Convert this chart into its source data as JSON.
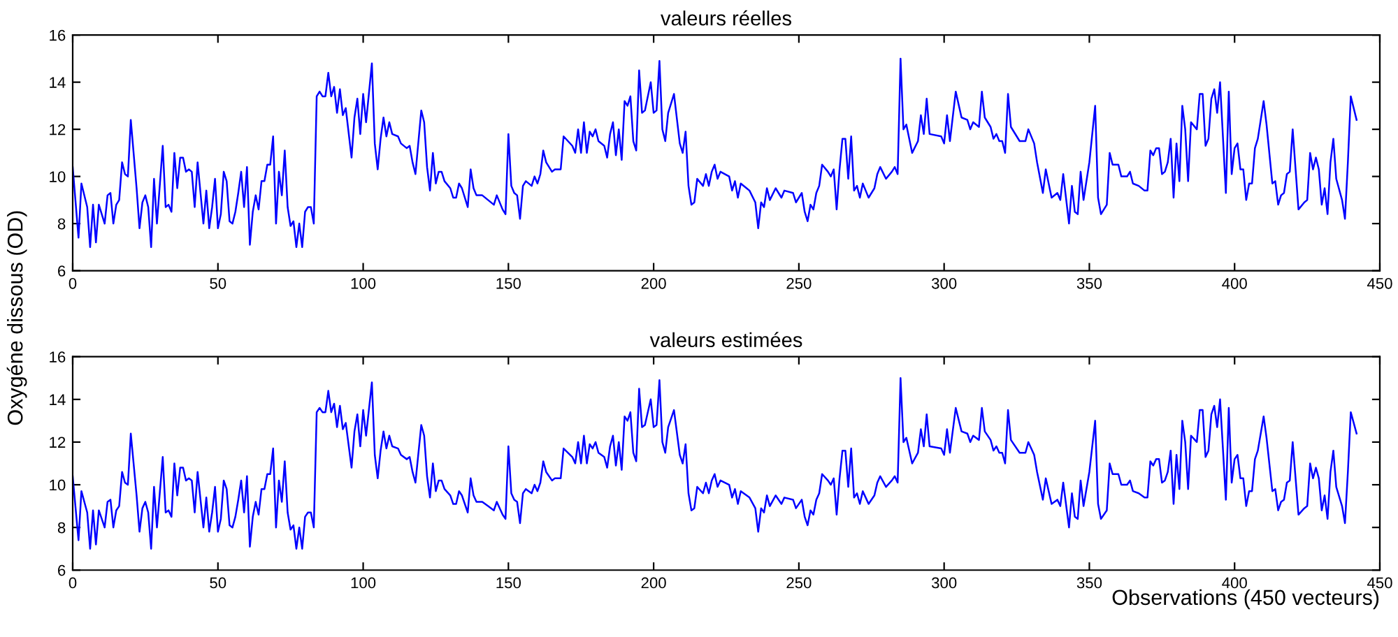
{
  "chart_data": [
    {
      "type": "line",
      "title": "valeurs réelles",
      "ylabel": "Oxygéne dissous (OD)",
      "xlim": [
        0,
        450
      ],
      "xticks": [
        0,
        50,
        100,
        150,
        200,
        250,
        300,
        350,
        400,
        450
      ],
      "ylim": [
        6,
        16
      ],
      "yticks": [
        6,
        8,
        10,
        12,
        14,
        16
      ],
      "grid": false,
      "legend": false,
      "marker": "none",
      "line_style": "solid",
      "series": [
        {
          "color": "#0000ff",
          "x": [
            0,
            2,
            3,
            5,
            6,
            7,
            8,
            9,
            11,
            12,
            13,
            14,
            15,
            16,
            17,
            18,
            19,
            20,
            22,
            23,
            24,
            25,
            26,
            27,
            28,
            29,
            31,
            32,
            33,
            34,
            35,
            36,
            37,
            38,
            39,
            40,
            41,
            42,
            43,
            44,
            45,
            46,
            47,
            48,
            49,
            50,
            51,
            52,
            53,
            54,
            55,
            56,
            57,
            58,
            59,
            60,
            61,
            62,
            63,
            64,
            65,
            66,
            67,
            68,
            69,
            70,
            71,
            72,
            73,
            74,
            75,
            76,
            77,
            78,
            79,
            80,
            81,
            82,
            83,
            84,
            85,
            86,
            87,
            88,
            89,
            90,
            91,
            92,
            93,
            94,
            96,
            97,
            98,
            99,
            100,
            101,
            103,
            104,
            105,
            106,
            107,
            108,
            109,
            110,
            112,
            113,
            115,
            116,
            117,
            118,
            120,
            121,
            122,
            123,
            124,
            125,
            126,
            127,
            128,
            130,
            131,
            132,
            133,
            134,
            136,
            137,
            138,
            139,
            141,
            143,
            145,
            146,
            148,
            149,
            150,
            151,
            152,
            153,
            154,
            155,
            156,
            158,
            159,
            160,
            161,
            162,
            163,
            165,
            166,
            168,
            169,
            172,
            173,
            174,
            175,
            176,
            177,
            178,
            179,
            180,
            181,
            183,
            184,
            185,
            186,
            187,
            188,
            189,
            190,
            191,
            192,
            193,
            194,
            195,
            196,
            197,
            199,
            200,
            201,
            202,
            203,
            204,
            205,
            207,
            209,
            210,
            211,
            212,
            213,
            214,
            215,
            217,
            218,
            219,
            220,
            221,
            222,
            223,
            226,
            227,
            228,
            229,
            230,
            232,
            233,
            235,
            236,
            237,
            238,
            239,
            240,
            242,
            244,
            245,
            248,
            249,
            251,
            252,
            253,
            254,
            255,
            256,
            257,
            258,
            260,
            261,
            262,
            263,
            264,
            265,
            266,
            267,
            268,
            269,
            270,
            271,
            272,
            273,
            274,
            276,
            277,
            278,
            280,
            282,
            283,
            284,
            285,
            286,
            287,
            289,
            291,
            292,
            293,
            294,
            295,
            299,
            300,
            301,
            302,
            304,
            306,
            308,
            309,
            310,
            312,
            313,
            314,
            316,
            317,
            318,
            319,
            320,
            321,
            322,
            323,
            326,
            328,
            329,
            331,
            332,
            334,
            335,
            337,
            339,
            340,
            341,
            343,
            344,
            345,
            346,
            347,
            348,
            350,
            352,
            353,
            354,
            356,
            357,
            358,
            360,
            361,
            363,
            364,
            365,
            367,
            369,
            370,
            371,
            372,
            373,
            374,
            375,
            376,
            377,
            378,
            379,
            380,
            381,
            382,
            383,
            384,
            385,
            387,
            388,
            389,
            390,
            391,
            392,
            393,
            394,
            395,
            397,
            398,
            399,
            400,
            401,
            402,
            403,
            404,
            405,
            406,
            407,
            408,
            410,
            411,
            413,
            414,
            415,
            416,
            417,
            418,
            419,
            420,
            421,
            422,
            424,
            425,
            426,
            427,
            428,
            429,
            430,
            431,
            432,
            433,
            434,
            435,
            437,
            438,
            439,
            440,
            442
          ],
          "values": [
            10.4,
            7.4,
            9.7,
            8.7,
            7.0,
            8.8,
            7.2,
            8.8,
            8.0,
            9.2,
            9.3,
            8.0,
            8.8,
            9.0,
            10.6,
            10.1,
            10.0,
            12.4,
            9.5,
            7.8,
            8.9,
            9.2,
            8.7,
            7.0,
            9.9,
            8.0,
            11.3,
            8.7,
            8.8,
            8.5,
            11.0,
            9.5,
            10.8,
            10.8,
            10.2,
            10.3,
            10.2,
            8.7,
            10.6,
            9.3,
            8.0,
            9.4,
            7.8,
            8.7,
            9.9,
            7.8,
            8.4,
            10.2,
            9.8,
            8.1,
            8.0,
            8.5,
            9.3,
            10.2,
            8.7,
            10.4,
            7.1,
            8.5,
            9.2,
            8.6,
            9.8,
            9.8,
            10.5,
            10.5,
            11.7,
            8.0,
            10.2,
            9.2,
            11.1,
            8.7,
            7.9,
            8.1,
            7.0,
            8.0,
            7.0,
            8.5,
            8.7,
            8.7,
            8.0,
            13.4,
            13.6,
            13.4,
            13.4,
            14.4,
            13.4,
            13.8,
            12.7,
            13.7,
            12.6,
            12.9,
            10.8,
            12.5,
            13.3,
            11.8,
            13.5,
            12.3,
            14.8,
            11.4,
            10.3,
            11.6,
            12.5,
            11.7,
            12.3,
            11.8,
            11.7,
            11.4,
            11.2,
            11.3,
            10.6,
            10.1,
            12.8,
            12.3,
            10.4,
            9.4,
            11.0,
            9.7,
            10.2,
            10.2,
            9.8,
            9.5,
            9.1,
            9.1,
            9.7,
            9.5,
            8.7,
            10.3,
            9.5,
            9.2,
            9.2,
            9.0,
            8.8,
            9.2,
            8.6,
            8.4,
            11.8,
            9.6,
            9.3,
            9.2,
            8.2,
            9.6,
            9.8,
            9.6,
            10.0,
            9.7,
            10.1,
            11.1,
            10.6,
            10.2,
            10.3,
            10.3,
            11.7,
            11.3,
            11.0,
            12.0,
            11.0,
            12.3,
            11.0,
            11.9,
            11.7,
            12.0,
            11.5,
            11.3,
            10.8,
            11.8,
            12.3,
            10.9,
            12.0,
            10.7,
            13.2,
            13.0,
            13.4,
            11.5,
            11.1,
            14.5,
            12.7,
            12.8,
            14.0,
            12.7,
            12.8,
            14.9,
            12.0,
            11.5,
            12.7,
            13.5,
            11.4,
            11.0,
            11.9,
            9.6,
            8.8,
            8.9,
            9.9,
            9.6,
            10.1,
            9.6,
            10.2,
            10.5,
            9.9,
            10.2,
            10.0,
            9.4,
            9.8,
            9.1,
            9.7,
            9.5,
            9.4,
            8.9,
            7.8,
            8.9,
            8.7,
            9.5,
            9.0,
            9.5,
            9.1,
            9.4,
            9.3,
            8.9,
            9.3,
            8.5,
            8.1,
            8.8,
            8.6,
            9.3,
            9.6,
            10.5,
            10.2,
            10.0,
            10.3,
            8.6,
            10.3,
            11.6,
            11.6,
            9.9,
            11.7,
            9.4,
            9.6,
            9.1,
            9.7,
            9.4,
            9.1,
            9.5,
            10.1,
            10.4,
            9.9,
            10.2,
            10.4,
            10.1,
            15.0,
            12.0,
            12.2,
            11.0,
            11.5,
            12.6,
            11.8,
            13.3,
            11.8,
            11.7,
            11.4,
            12.6,
            11.5,
            13.6,
            12.5,
            12.4,
            12.0,
            12.3,
            12.1,
            13.6,
            12.5,
            12.1,
            11.6,
            11.8,
            11.5,
            11.5,
            11.0,
            13.5,
            12.1,
            11.5,
            11.5,
            12.0,
            11.4,
            10.6,
            9.3,
            10.3,
            9.1,
            9.3,
            9.0,
            10.1,
            8.0,
            9.6,
            8.5,
            8.4,
            10.2,
            9.0,
            10.6,
            13.0,
            9.1,
            8.4,
            8.8,
            11.0,
            10.5,
            10.5,
            10.0,
            10.0,
            10.2,
            9.7,
            9.6,
            9.4,
            9.4,
            11.1,
            10.9,
            11.2,
            11.2,
            10.1,
            10.2,
            10.6,
            11.6,
            9.1,
            11.4,
            9.8,
            13.0,
            12.0,
            9.8,
            12.3,
            12.0,
            13.5,
            13.5,
            11.3,
            11.6,
            13.3,
            13.7,
            12.7,
            14.0,
            9.3,
            13.6,
            10.1,
            11.2,
            11.4,
            10.3,
            10.3,
            9.0,
            9.7,
            9.7,
            11.2,
            11.6,
            13.2,
            12.2,
            9.7,
            9.8,
            8.8,
            9.2,
            9.3,
            10.1,
            10.2,
            12.0,
            10.3,
            8.6,
            8.9,
            9.0,
            11.0,
            10.3,
            10.8,
            10.3,
            8.8,
            9.5,
            8.4,
            10.6,
            11.6,
            9.9,
            9.0,
            8.2,
            10.6,
            13.4,
            12.4
          ]
        }
      ]
    },
    {
      "type": "line",
      "title": "valeurs estimées",
      "xlabel": "Observations (450 vecteurs)",
      "xlim": [
        0,
        450
      ],
      "xticks": [
        0,
        50,
        100,
        150,
        200,
        250,
        300,
        350,
        400,
        450
      ],
      "ylim": [
        6,
        16
      ],
      "yticks": [
        6,
        8,
        10,
        12,
        14,
        16
      ],
      "grid": false,
      "legend": false,
      "marker": "none",
      "line_style": "solid",
      "series": [
        {
          "color": "#0000ff",
          "x": [
            0,
            2,
            3,
            5,
            6,
            7,
            8,
            9,
            11,
            12,
            13,
            14,
            15,
            16,
            17,
            18,
            19,
            20,
            22,
            23,
            24,
            25,
            26,
            27,
            28,
            29,
            31,
            32,
            33,
            34,
            35,
            36,
            37,
            38,
            39,
            40,
            41,
            42,
            43,
            44,
            45,
            46,
            47,
            48,
            49,
            50,
            51,
            52,
            53,
            54,
            55,
            56,
            57,
            58,
            59,
            60,
            61,
            62,
            63,
            64,
            65,
            66,
            67,
            68,
            69,
            70,
            71,
            72,
            73,
            74,
            75,
            76,
            77,
            78,
            79,
            80,
            81,
            82,
            83,
            84,
            85,
            86,
            87,
            88,
            89,
            90,
            91,
            92,
            93,
            94,
            96,
            97,
            98,
            99,
            100,
            101,
            103,
            104,
            105,
            106,
            107,
            108,
            109,
            110,
            112,
            113,
            115,
            116,
            117,
            118,
            120,
            121,
            122,
            123,
            124,
            125,
            126,
            127,
            128,
            130,
            131,
            132,
            133,
            134,
            136,
            137,
            138,
            139,
            141,
            143,
            145,
            146,
            148,
            149,
            150,
            151,
            152,
            153,
            154,
            155,
            156,
            158,
            159,
            160,
            161,
            162,
            163,
            165,
            166,
            168,
            169,
            172,
            173,
            174,
            175,
            176,
            177,
            178,
            179,
            180,
            181,
            183,
            184,
            185,
            186,
            187,
            188,
            189,
            190,
            191,
            192,
            193,
            194,
            195,
            196,
            197,
            199,
            200,
            201,
            202,
            203,
            204,
            205,
            207,
            209,
            210,
            211,
            212,
            213,
            214,
            215,
            217,
            218,
            219,
            220,
            221,
            222,
            223,
            226,
            227,
            228,
            229,
            230,
            232,
            233,
            235,
            236,
            237,
            238,
            239,
            240,
            242,
            244,
            245,
            248,
            249,
            251,
            252,
            253,
            254,
            255,
            256,
            257,
            258,
            260,
            261,
            262,
            263,
            264,
            265,
            266,
            267,
            268,
            269,
            270,
            271,
            272,
            273,
            274,
            276,
            277,
            278,
            280,
            282,
            283,
            284,
            285,
            286,
            287,
            289,
            291,
            292,
            293,
            294,
            295,
            299,
            300,
            301,
            302,
            304,
            306,
            308,
            309,
            310,
            312,
            313,
            314,
            316,
            317,
            318,
            319,
            320,
            321,
            322,
            323,
            326,
            328,
            329,
            331,
            332,
            334,
            335,
            337,
            339,
            340,
            341,
            343,
            344,
            345,
            346,
            347,
            348,
            350,
            352,
            353,
            354,
            356,
            357,
            358,
            360,
            361,
            363,
            364,
            365,
            367,
            369,
            370,
            371,
            372,
            373,
            374,
            375,
            376,
            377,
            378,
            379,
            380,
            381,
            382,
            383,
            384,
            385,
            387,
            388,
            389,
            390,
            391,
            392,
            393,
            394,
            395,
            397,
            398,
            399,
            400,
            401,
            402,
            403,
            404,
            405,
            406,
            407,
            408,
            410,
            411,
            413,
            414,
            415,
            416,
            417,
            418,
            419,
            420,
            421,
            422,
            424,
            425,
            426,
            427,
            428,
            429,
            430,
            431,
            432,
            433,
            434,
            435,
            437,
            438,
            439,
            440,
            442
          ],
          "values": [
            10.4,
            7.4,
            9.7,
            8.7,
            7.0,
            8.8,
            7.2,
            8.8,
            8.0,
            9.2,
            9.3,
            8.0,
            8.8,
            9.0,
            10.6,
            10.1,
            10.0,
            12.4,
            9.5,
            7.8,
            8.9,
            9.2,
            8.7,
            7.0,
            9.9,
            8.0,
            11.3,
            8.7,
            8.8,
            8.5,
            11.0,
            9.5,
            10.8,
            10.8,
            10.2,
            10.3,
            10.2,
            8.7,
            10.6,
            9.3,
            8.0,
            9.4,
            7.8,
            8.7,
            9.9,
            7.8,
            8.4,
            10.2,
            9.8,
            8.1,
            8.0,
            8.5,
            9.3,
            10.2,
            8.7,
            10.4,
            7.1,
            8.5,
            9.2,
            8.6,
            9.8,
            9.8,
            10.5,
            10.5,
            11.7,
            8.0,
            10.2,
            9.2,
            11.1,
            8.7,
            7.9,
            8.1,
            7.0,
            8.0,
            7.0,
            8.5,
            8.7,
            8.7,
            8.0,
            13.4,
            13.6,
            13.4,
            13.4,
            14.4,
            13.4,
            13.8,
            12.7,
            13.7,
            12.6,
            12.9,
            10.8,
            12.5,
            13.3,
            11.8,
            13.5,
            12.3,
            14.8,
            11.4,
            10.3,
            11.6,
            12.5,
            11.7,
            12.3,
            11.8,
            11.7,
            11.4,
            11.2,
            11.3,
            10.6,
            10.1,
            12.8,
            12.3,
            10.4,
            9.4,
            11.0,
            9.7,
            10.2,
            10.2,
            9.8,
            9.5,
            9.1,
            9.1,
            9.7,
            9.5,
            8.7,
            10.3,
            9.5,
            9.2,
            9.2,
            9.0,
            8.8,
            9.2,
            8.6,
            8.4,
            11.8,
            9.6,
            9.3,
            9.2,
            8.2,
            9.6,
            9.8,
            9.6,
            10.0,
            9.7,
            10.1,
            11.1,
            10.6,
            10.2,
            10.3,
            10.3,
            11.7,
            11.3,
            11.0,
            12.0,
            11.0,
            12.3,
            11.0,
            11.9,
            11.7,
            12.0,
            11.5,
            11.3,
            10.8,
            11.8,
            12.3,
            10.9,
            12.0,
            10.7,
            13.2,
            13.0,
            13.4,
            11.5,
            11.1,
            14.5,
            12.7,
            12.8,
            14.0,
            12.7,
            12.8,
            14.9,
            12.0,
            11.5,
            12.7,
            13.5,
            11.4,
            11.0,
            11.9,
            9.6,
            8.8,
            8.9,
            9.9,
            9.6,
            10.1,
            9.6,
            10.2,
            10.5,
            9.9,
            10.2,
            10.0,
            9.4,
            9.8,
            9.1,
            9.7,
            9.5,
            9.4,
            8.9,
            7.8,
            8.9,
            8.7,
            9.5,
            9.0,
            9.5,
            9.1,
            9.4,
            9.3,
            8.9,
            9.3,
            8.5,
            8.1,
            8.8,
            8.6,
            9.3,
            9.6,
            10.5,
            10.2,
            10.0,
            10.3,
            8.6,
            10.3,
            11.6,
            11.6,
            9.9,
            11.7,
            9.4,
            9.6,
            9.1,
            9.7,
            9.4,
            9.1,
            9.5,
            10.1,
            10.4,
            9.9,
            10.2,
            10.4,
            10.1,
            15.0,
            12.0,
            12.2,
            11.0,
            11.5,
            12.6,
            11.8,
            13.3,
            11.8,
            11.7,
            11.4,
            12.6,
            11.5,
            13.6,
            12.5,
            12.4,
            12.0,
            12.3,
            12.1,
            13.6,
            12.5,
            12.1,
            11.6,
            11.8,
            11.5,
            11.5,
            11.0,
            13.5,
            12.1,
            11.5,
            11.5,
            12.0,
            11.4,
            10.6,
            9.3,
            10.3,
            9.1,
            9.3,
            9.0,
            10.1,
            8.0,
            9.6,
            8.5,
            8.4,
            10.2,
            9.0,
            10.6,
            13.0,
            9.1,
            8.4,
            8.8,
            11.0,
            10.5,
            10.5,
            10.0,
            10.0,
            10.2,
            9.7,
            9.6,
            9.4,
            9.4,
            11.1,
            10.9,
            11.2,
            11.2,
            10.1,
            10.2,
            10.6,
            11.6,
            9.1,
            11.4,
            9.8,
            13.0,
            12.0,
            9.8,
            12.3,
            12.0,
            13.5,
            13.5,
            11.3,
            11.6,
            13.3,
            13.7,
            12.7,
            14.0,
            9.3,
            13.6,
            10.1,
            11.2,
            11.4,
            10.3,
            10.3,
            9.0,
            9.7,
            9.7,
            11.2,
            11.6,
            13.2,
            12.2,
            9.7,
            9.8,
            8.8,
            9.2,
            9.3,
            10.1,
            10.2,
            12.0,
            10.3,
            8.6,
            8.9,
            9.0,
            11.0,
            10.3,
            10.8,
            10.3,
            8.8,
            9.5,
            8.4,
            10.6,
            11.6,
            9.9,
            9.0,
            8.2,
            10.6,
            13.4,
            12.4
          ]
        }
      ]
    }
  ]
}
